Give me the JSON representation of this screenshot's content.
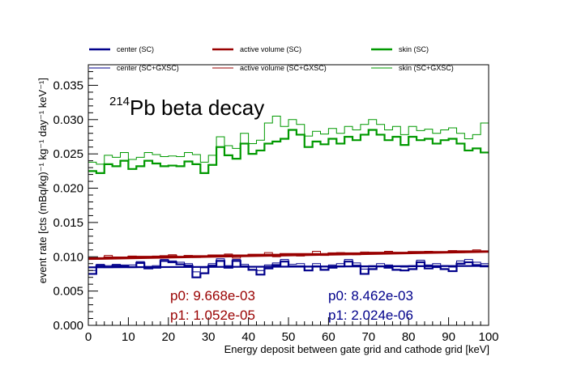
{
  "chart_data": {
    "type": "line",
    "title_sup": "214",
    "title_main": "Pb beta decay",
    "xlabel": "Energy deposit between gate grid and cathode grid [keV]",
    "ylabel": "event rate [cts (mBq/kg)⁻¹ kg⁻¹ day⁻¹ keV⁻¹]",
    "xlim": [
      0,
      100
    ],
    "ylim": [
      0,
      0.038
    ],
    "bin_width": 2,
    "x_ticks": [
      "0",
      "10",
      "20",
      "30",
      "40",
      "50",
      "60",
      "70",
      "80",
      "90",
      "100"
    ],
    "x_tick_values": [
      0,
      10,
      20,
      30,
      40,
      50,
      60,
      70,
      80,
      90,
      100
    ],
    "y_ticks": [
      "0.000",
      "0.005",
      "0.010",
      "0.015",
      "0.020",
      "0.025",
      "0.030",
      "0.035"
    ],
    "y_tick_values": [
      0,
      0.005,
      0.01,
      0.015,
      0.02,
      0.025,
      0.03,
      0.035
    ],
    "legend_position": "top",
    "series": [
      {
        "name": "center (SC)",
        "color": "#00008b",
        "thick": true,
        "values": [
          0.0075,
          0.0087,
          0.0085,
          0.0087,
          0.0086,
          0.0085,
          0.0091,
          0.0083,
          0.0084,
          0.0094,
          0.0092,
          0.0089,
          0.0087,
          0.007,
          0.0076,
          0.0087,
          0.0094,
          0.0084,
          0.0094,
          0.0086,
          0.0081,
          0.0074,
          0.0083,
          0.0088,
          0.0093,
          0.0086,
          0.0086,
          0.008,
          0.0086,
          0.0081,
          0.0084,
          0.0086,
          0.0093,
          0.0087,
          0.0075,
          0.0082,
          0.0086,
          0.0084,
          0.0081,
          0.008,
          0.0082,
          0.0092,
          0.0083,
          0.0085,
          0.0082,
          0.0079,
          0.009,
          0.0092,
          0.0088,
          0.0086
        ]
      },
      {
        "name": "active volume (SC)",
        "color": "#990000",
        "thick": true,
        "values": [
          0.0098,
          0.0098,
          0.0099,
          0.0099,
          0.0099,
          0.01,
          0.01,
          0.01,
          0.01,
          0.0101,
          0.0101,
          0.01,
          0.0101,
          0.0101,
          0.0101,
          0.0102,
          0.0102,
          0.0102,
          0.0102,
          0.0102,
          0.0103,
          0.0103,
          0.0103,
          0.0103,
          0.0104,
          0.0104,
          0.0104,
          0.0104,
          0.0104,
          0.0104,
          0.0105,
          0.0105,
          0.0105,
          0.0105,
          0.0105,
          0.0106,
          0.0106,
          0.0106,
          0.0106,
          0.0106,
          0.0107,
          0.0107,
          0.0107,
          0.0107,
          0.0107,
          0.0108,
          0.0108,
          0.0108,
          0.0108,
          0.0108
        ]
      },
      {
        "name": "skin (SC)",
        "color": "#009900",
        "thick": true,
        "values": [
          0.0225,
          0.0222,
          0.0235,
          0.0232,
          0.024,
          0.0228,
          0.0232,
          0.024,
          0.0236,
          0.0232,
          0.0233,
          0.0232,
          0.0239,
          0.0235,
          0.0222,
          0.0234,
          0.026,
          0.0248,
          0.0243,
          0.0265,
          0.025,
          0.0255,
          0.0265,
          0.0268,
          0.0272,
          0.0285,
          0.0278,
          0.026,
          0.0268,
          0.0264,
          0.0272,
          0.0265,
          0.0275,
          0.027,
          0.0278,
          0.0285,
          0.0278,
          0.027,
          0.0275,
          0.0263,
          0.0275,
          0.027,
          0.0272,
          0.0265,
          0.027,
          0.0272,
          0.0265,
          0.0255,
          0.0258,
          0.0252
        ]
      },
      {
        "name": "center (SC+GXSC)",
        "color": "#00008b",
        "thick": false,
        "values": [
          0.008,
          0.0089,
          0.0087,
          0.0089,
          0.0088,
          0.0088,
          0.0093,
          0.0086,
          0.0087,
          0.0096,
          0.0094,
          0.0092,
          0.009,
          0.0078,
          0.0084,
          0.009,
          0.0097,
          0.0087,
          0.0096,
          0.0089,
          0.0085,
          0.008,
          0.0088,
          0.0091,
          0.0096,
          0.0089,
          0.009,
          0.0085,
          0.009,
          0.0086,
          0.0088,
          0.009,
          0.0096,
          0.0091,
          0.0082,
          0.0087,
          0.009,
          0.0088,
          0.0086,
          0.0085,
          0.0087,
          0.0095,
          0.0088,
          0.009,
          0.0087,
          0.0085,
          0.0094,
          0.0096,
          0.0092,
          0.009
        ]
      },
      {
        "name": "active volume (SC+GXSC)",
        "color": "#990000",
        "thick": false,
        "values": [
          0.0097,
          0.0098,
          0.0102,
          0.0097,
          0.0099,
          0.0101,
          0.0098,
          0.01,
          0.0101,
          0.0099,
          0.0103,
          0.01,
          0.0102,
          0.0099,
          0.0101,
          0.0101,
          0.01,
          0.0104,
          0.0098,
          0.0101,
          0.0103,
          0.0102,
          0.0106,
          0.01,
          0.0103,
          0.0104,
          0.0101,
          0.0103,
          0.0108,
          0.0102,
          0.0103,
          0.0106,
          0.0104,
          0.0103,
          0.0107,
          0.0105,
          0.0104,
          0.0108,
          0.0105,
          0.0106,
          0.0107,
          0.0105,
          0.0108,
          0.0106,
          0.0107,
          0.0109,
          0.0106,
          0.0108,
          0.011,
          0.0107
        ]
      },
      {
        "name": "skin (SC+GXSC)",
        "color": "#009900",
        "thick": false,
        "values": [
          0.0238,
          0.0235,
          0.0248,
          0.0245,
          0.0252,
          0.0242,
          0.0245,
          0.0252,
          0.0249,
          0.0246,
          0.0247,
          0.0246,
          0.0252,
          0.0249,
          0.0238,
          0.0248,
          0.0275,
          0.0262,
          0.0258,
          0.028,
          0.0265,
          0.027,
          0.0295,
          0.0305,
          0.029,
          0.03,
          0.0293,
          0.0276,
          0.0283,
          0.0279,
          0.0287,
          0.028,
          0.029,
          0.0285,
          0.0293,
          0.03,
          0.0293,
          0.0285,
          0.029,
          0.0278,
          0.029,
          0.0284,
          0.0286,
          0.028,
          0.0285,
          0.0288,
          0.028,
          0.0272,
          0.0278,
          0.0295
        ]
      }
    ],
    "fits": [
      {
        "color": "#990000",
        "p0_label": "p0: 9.668e-03",
        "p1_label": "p1: 1.052e-05",
        "p0": 0.009668,
        "p1": 1.052e-05
      },
      {
        "color": "#00008b",
        "p0_label": "p0: 8.462e-03",
        "p1_label": "p1: 2.024e-06",
        "p0": 0.008462,
        "p1": 2.024e-06
      }
    ]
  }
}
